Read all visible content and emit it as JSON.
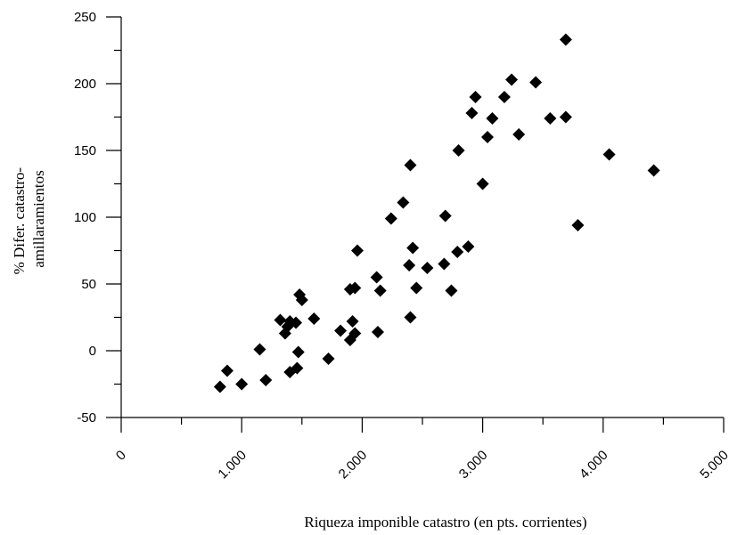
{
  "chart_data": {
    "type": "scatter",
    "title": "",
    "xlabel": "Riqueza imponible catastro (en pts. corrientes)",
    "ylabel_lines": [
      "% Difer. catastro-",
      "amillaramientos"
    ],
    "xlim": [
      0,
      5000
    ],
    "ylim": [
      -50,
      250
    ],
    "x_ticks": [
      0,
      1000,
      2000,
      3000,
      4000,
      5000
    ],
    "x_tick_labels": [
      "0",
      "1.000",
      "2.000",
      "3.000",
      "4.000",
      "5.000"
    ],
    "y_ticks": [
      -50,
      0,
      50,
      100,
      150,
      200,
      250
    ],
    "y_tick_labels": [
      "-50",
      "0",
      "50",
      "100",
      "150",
      "200",
      "250"
    ],
    "grid": false,
    "legend": "none",
    "marker": "diamond",
    "marker_color": "#000000",
    "points": [
      [
        820,
        -27
      ],
      [
        880,
        -15
      ],
      [
        1000,
        -25
      ],
      [
        1150,
        1
      ],
      [
        1200,
        -22
      ],
      [
        1320,
        23
      ],
      [
        1360,
        13
      ],
      [
        1380,
        18
      ],
      [
        1400,
        22
      ],
      [
        1400,
        -16
      ],
      [
        1450,
        21
      ],
      [
        1460,
        -13
      ],
      [
        1470,
        -1
      ],
      [
        1480,
        42
      ],
      [
        1500,
        38
      ],
      [
        1600,
        24
      ],
      [
        1720,
        -6
      ],
      [
        1820,
        15
      ],
      [
        1900,
        46
      ],
      [
        1900,
        8
      ],
      [
        1920,
        22
      ],
      [
        1940,
        13
      ],
      [
        1940,
        47
      ],
      [
        1960,
        75
      ],
      [
        2120,
        55
      ],
      [
        2130,
        14
      ],
      [
        2150,
        45
      ],
      [
        2240,
        99
      ],
      [
        2340,
        111
      ],
      [
        2390,
        64
      ],
      [
        2400,
        139
      ],
      [
        2400,
        25
      ],
      [
        2420,
        77
      ],
      [
        2450,
        47
      ],
      [
        2540,
        62
      ],
      [
        2680,
        65
      ],
      [
        2690,
        101
      ],
      [
        2740,
        45
      ],
      [
        2790,
        74
      ],
      [
        2800,
        150
      ],
      [
        2880,
        78
      ],
      [
        2910,
        178
      ],
      [
        2940,
        190
      ],
      [
        3000,
        125
      ],
      [
        3040,
        160
      ],
      [
        3080,
        174
      ],
      [
        3180,
        190
      ],
      [
        3240,
        203
      ],
      [
        3300,
        162
      ],
      [
        3440,
        201
      ],
      [
        3560,
        174
      ],
      [
        3690,
        175
      ],
      [
        3690,
        233
      ],
      [
        3790,
        94
      ],
      [
        4050,
        147
      ],
      [
        4420,
        135
      ]
    ]
  }
}
